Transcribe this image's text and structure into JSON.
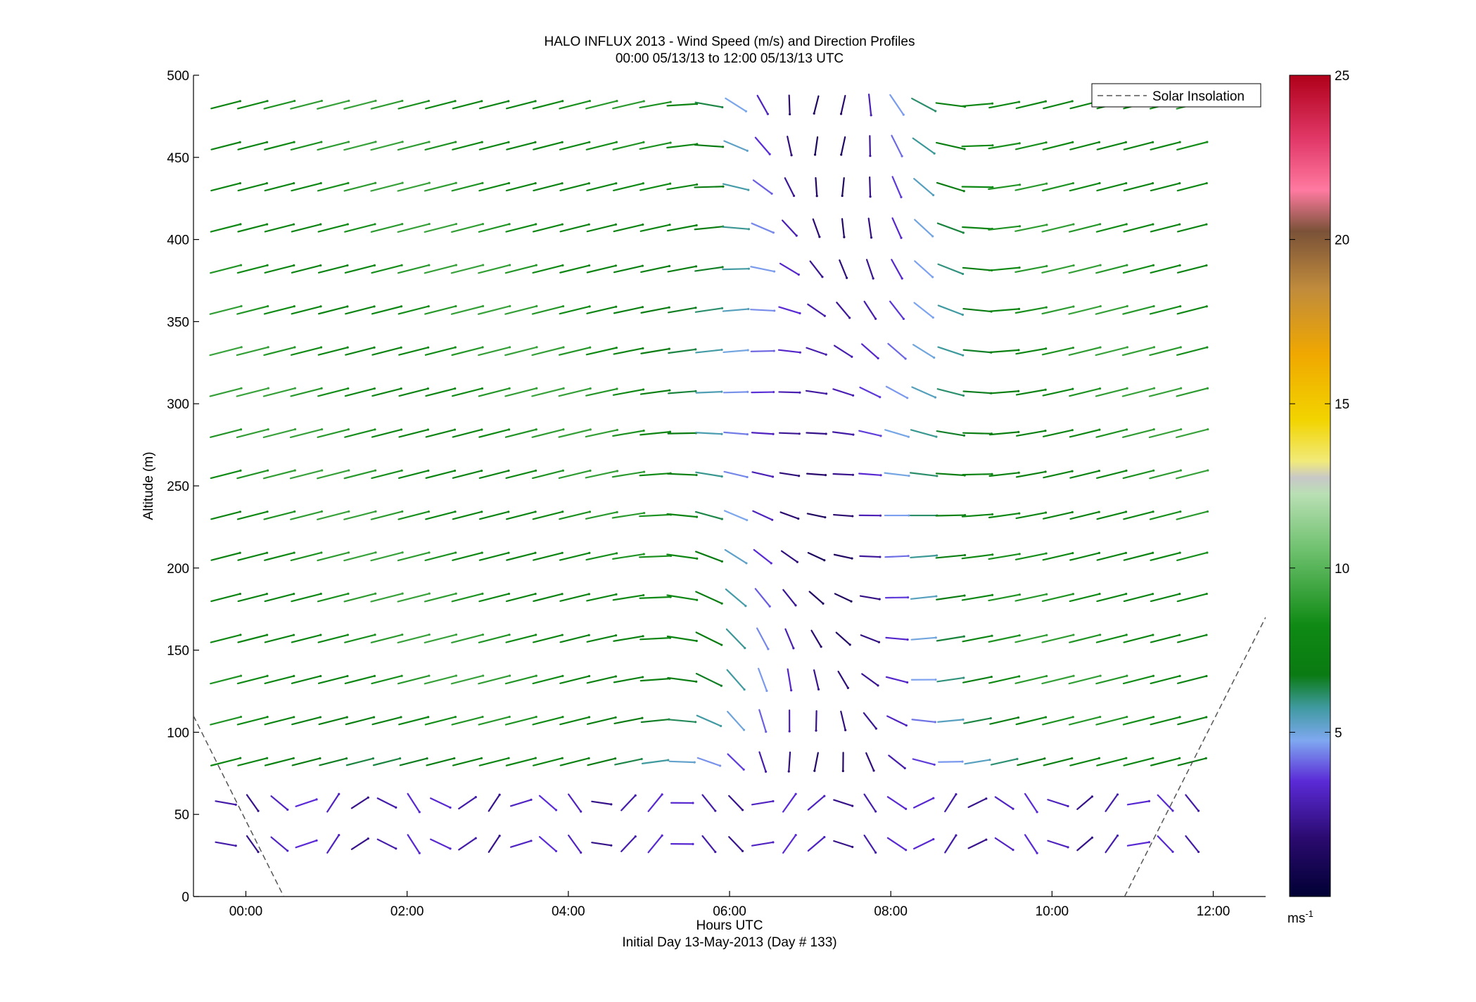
{
  "chart_data": {
    "type": "scatter",
    "title": "HALO INFLUX 2013 - Wind Speed (m/s) and Direction Profiles",
    "subtitle": "00:00 05/13/13 to 12:00 05/13/13  UTC",
    "xlabel": "Hours UTC",
    "xlabel2": "Initial Day 13-May-2013 (Day # 133)",
    "ylabel": "Altitude (m)",
    "xlim": [
      -0.65,
      12.65
    ],
    "ylim": [
      0,
      500
    ],
    "x_ticks": [
      0,
      2,
      4,
      6,
      8,
      10,
      12
    ],
    "x_tick_labels": [
      "00:00",
      "02:00",
      "04:00",
      "06:00",
      "08:00",
      "10:00",
      "12:00"
    ],
    "y_ticks": [
      0,
      50,
      100,
      150,
      200,
      250,
      300,
      350,
      400,
      450,
      500
    ],
    "y_tick_labels": [
      "0",
      "50",
      "100",
      "150",
      "200",
      "250",
      "300",
      "350",
      "400",
      "450",
      "500"
    ],
    "grid": false,
    "legend": {
      "position": "top-right",
      "entries": [
        "Solar Insolation"
      ]
    },
    "colorbar": {
      "min": 0,
      "max": 25,
      "ticks": [
        5,
        10,
        15,
        20,
        25
      ],
      "tick_labels": [
        "5",
        "10",
        "15",
        "20",
        "25"
      ],
      "unit_label": "ms",
      "unit_exponent": "-1"
    },
    "solar_insolation": [
      {
        "x": -0.65,
        "y": 110
      },
      {
        "x": 0.47,
        "y": 0
      },
      {
        "x": 10.9,
        "y": 0
      },
      {
        "x": 12.65,
        "y": 170
      }
    ],
    "wind_barbs_note": "Wind speed (color) and direction (segment orientation) at altitudes 30–500 m every ~0.33 h"
  }
}
